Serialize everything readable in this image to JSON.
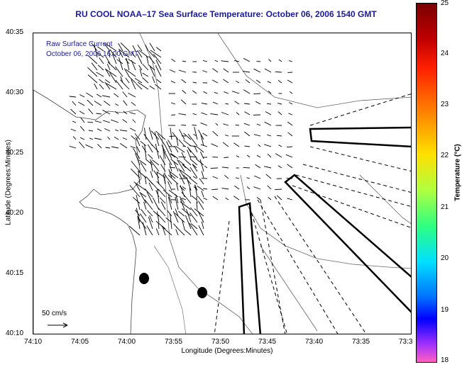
{
  "title": "RU COOL  NOAA–17  Sea Surface Temperature:  October 06, 2006 1540 GMT",
  "legend": {
    "line1": "Raw Surface Current",
    "line2": "October 06, 2006 16:00 GMT"
  },
  "scale_label": "50 cm/s",
  "axes": {
    "xlabel": "Longitude (Degrees:Minutes)",
    "ylabel": "Latitude (Degrees:Minutes)",
    "x_ticks": [
      "74:10",
      "74:05",
      "74:00",
      "73:55",
      "73:50",
      "73:45",
      "73:40",
      "73:35",
      "73:3"
    ],
    "y_ticks": [
      "40:35",
      "40:30",
      "40:25",
      "40:20",
      "40:15",
      "40:10"
    ]
  },
  "colorbar": {
    "label": "Temperature (°C)",
    "ticks": [
      "25",
      "24",
      "23",
      "22",
      "21",
      "20",
      "19",
      "18"
    ]
  }
}
